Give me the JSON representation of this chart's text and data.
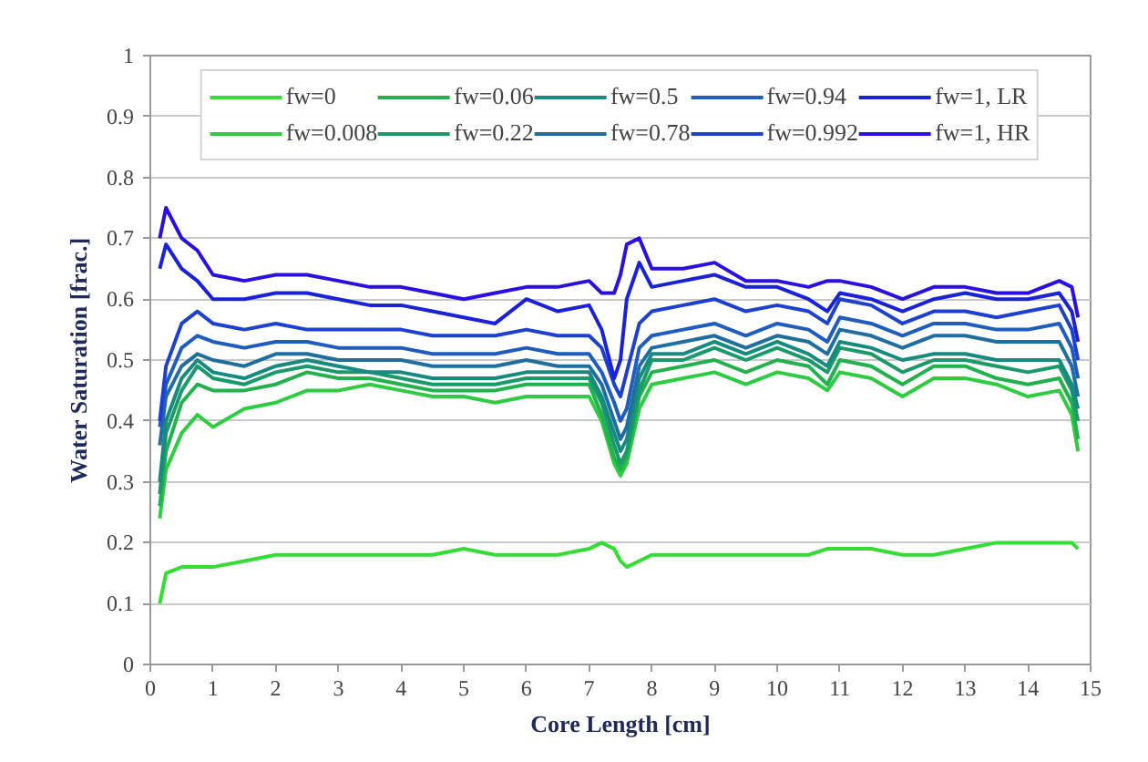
{
  "chart_data": {
    "type": "line",
    "xlabel": "Core Length [cm]",
    "ylabel": "Water Saturation [frac.]",
    "xlim": [
      0,
      15
    ],
    "xticks": [
      0,
      1,
      2,
      3,
      4,
      5,
      6,
      7,
      8,
      9,
      10,
      11,
      12,
      13,
      14,
      15
    ],
    "ylim": [
      0,
      1
    ],
    "yticks": [
      0,
      0.1,
      0.2,
      0.3,
      0.4,
      0.5,
      0.6,
      0.7,
      0.8,
      0.9,
      1
    ],
    "grid": "y",
    "legend": "top",
    "marker": "none",
    "line_style": "solid",
    "x": [
      0.15,
      0.25,
      0.5,
      0.75,
      1,
      1.5,
      2,
      2.5,
      3,
      3.5,
      4,
      4.5,
      5,
      5.5,
      6,
      6.5,
      7,
      7.2,
      7.4,
      7.5,
      7.6,
      7.8,
      8,
      8.5,
      9,
      9.5,
      10,
      10.5,
      10.8,
      11,
      11.5,
      12,
      12.5,
      13,
      13.5,
      14,
      14.5,
      14.7,
      14.8
    ],
    "series": [
      {
        "name": "fw=0",
        "color": "#33dd33",
        "values": [
          0.1,
          0.15,
          0.16,
          0.16,
          0.16,
          0.17,
          0.18,
          0.18,
          0.18,
          0.18,
          0.18,
          0.18,
          0.19,
          0.18,
          0.18,
          0.18,
          0.19,
          0.2,
          0.19,
          0.17,
          0.16,
          0.17,
          0.18,
          0.18,
          0.18,
          0.18,
          0.18,
          0.18,
          0.19,
          0.19,
          0.19,
          0.18,
          0.18,
          0.19,
          0.2,
          0.2,
          0.2,
          0.2,
          0.19
        ]
      },
      {
        "name": "fw=0.008",
        "color": "#2ecc40",
        "values": [
          0.24,
          0.32,
          0.38,
          0.41,
          0.39,
          0.42,
          0.43,
          0.45,
          0.45,
          0.46,
          0.45,
          0.44,
          0.44,
          0.43,
          0.44,
          0.44,
          0.44,
          0.4,
          0.33,
          0.31,
          0.33,
          0.42,
          0.46,
          0.47,
          0.48,
          0.46,
          0.48,
          0.47,
          0.45,
          0.48,
          0.47,
          0.44,
          0.47,
          0.47,
          0.46,
          0.44,
          0.45,
          0.41,
          0.35
        ]
      },
      {
        "name": "fw=0.06",
        "color": "#22b14c",
        "values": [
          0.26,
          0.35,
          0.43,
          0.46,
          0.45,
          0.45,
          0.46,
          0.48,
          0.47,
          0.47,
          0.46,
          0.45,
          0.45,
          0.45,
          0.46,
          0.46,
          0.46,
          0.41,
          0.34,
          0.32,
          0.34,
          0.44,
          0.48,
          0.49,
          0.5,
          0.48,
          0.5,
          0.49,
          0.46,
          0.5,
          0.49,
          0.46,
          0.49,
          0.49,
          0.47,
          0.46,
          0.47,
          0.43,
          0.37
        ]
      },
      {
        "name": "fw=0.22",
        "color": "#1a9a6a",
        "values": [
          0.28,
          0.38,
          0.45,
          0.49,
          0.47,
          0.46,
          0.48,
          0.49,
          0.48,
          0.48,
          0.47,
          0.46,
          0.46,
          0.46,
          0.47,
          0.47,
          0.47,
          0.43,
          0.36,
          0.33,
          0.35,
          0.45,
          0.5,
          0.5,
          0.52,
          0.5,
          0.52,
          0.5,
          0.48,
          0.52,
          0.51,
          0.48,
          0.5,
          0.5,
          0.49,
          0.48,
          0.49,
          0.45,
          0.4
        ]
      },
      {
        "name": "fw=0.5",
        "color": "#178a80",
        "values": [
          0.3,
          0.4,
          0.47,
          0.5,
          0.48,
          0.47,
          0.49,
          0.5,
          0.49,
          0.48,
          0.48,
          0.47,
          0.47,
          0.47,
          0.48,
          0.48,
          0.48,
          0.44,
          0.38,
          0.35,
          0.37,
          0.47,
          0.51,
          0.51,
          0.53,
          0.51,
          0.53,
          0.51,
          0.49,
          0.53,
          0.52,
          0.5,
          0.51,
          0.51,
          0.5,
          0.5,
          0.5,
          0.46,
          0.42
        ]
      },
      {
        "name": "fw=0.78",
        "color": "#1e6fa0",
        "values": [
          0.36,
          0.44,
          0.49,
          0.51,
          0.5,
          0.49,
          0.51,
          0.51,
          0.5,
          0.5,
          0.5,
          0.49,
          0.49,
          0.49,
          0.5,
          0.49,
          0.49,
          0.46,
          0.4,
          0.37,
          0.39,
          0.49,
          0.52,
          0.53,
          0.54,
          0.52,
          0.54,
          0.53,
          0.51,
          0.55,
          0.54,
          0.52,
          0.54,
          0.54,
          0.53,
          0.53,
          0.53,
          0.49,
          0.44
        ]
      },
      {
        "name": "fw=0.94",
        "color": "#1f5cbf",
        "values": [
          0.39,
          0.46,
          0.52,
          0.54,
          0.53,
          0.52,
          0.53,
          0.53,
          0.52,
          0.52,
          0.52,
          0.51,
          0.51,
          0.51,
          0.52,
          0.51,
          0.51,
          0.48,
          0.43,
          0.4,
          0.42,
          0.52,
          0.54,
          0.55,
          0.56,
          0.54,
          0.56,
          0.55,
          0.53,
          0.57,
          0.56,
          0.54,
          0.56,
          0.56,
          0.55,
          0.55,
          0.56,
          0.52,
          0.47
        ]
      },
      {
        "name": "fw=0.992",
        "color": "#1e40d0",
        "values": [
          0.4,
          0.49,
          0.56,
          0.58,
          0.56,
          0.55,
          0.56,
          0.55,
          0.55,
          0.55,
          0.55,
          0.54,
          0.54,
          0.54,
          0.55,
          0.54,
          0.54,
          0.52,
          0.46,
          0.44,
          0.48,
          0.56,
          0.58,
          0.59,
          0.6,
          0.58,
          0.59,
          0.58,
          0.56,
          0.6,
          0.59,
          0.56,
          0.58,
          0.58,
          0.57,
          0.58,
          0.59,
          0.55,
          0.5
        ]
      },
      {
        "name": "fw=1, LR",
        "color": "#1a22d8",
        "values": [
          0.65,
          0.69,
          0.65,
          0.63,
          0.6,
          0.6,
          0.61,
          0.61,
          0.6,
          0.59,
          0.59,
          0.58,
          0.57,
          0.56,
          0.6,
          0.58,
          0.59,
          0.55,
          0.47,
          0.5,
          0.6,
          0.66,
          0.62,
          0.63,
          0.64,
          0.62,
          0.62,
          0.6,
          0.58,
          0.61,
          0.6,
          0.58,
          0.6,
          0.61,
          0.6,
          0.6,
          0.61,
          0.58,
          0.53
        ]
      },
      {
        "name": "fw=1, HR",
        "color": "#2a10e0",
        "values": [
          0.7,
          0.75,
          0.7,
          0.68,
          0.64,
          0.63,
          0.64,
          0.64,
          0.63,
          0.62,
          0.62,
          0.61,
          0.6,
          0.61,
          0.62,
          0.62,
          0.63,
          0.61,
          0.61,
          0.64,
          0.69,
          0.7,
          0.65,
          0.65,
          0.66,
          0.63,
          0.63,
          0.62,
          0.63,
          0.63,
          0.62,
          0.6,
          0.62,
          0.62,
          0.61,
          0.61,
          0.63,
          0.62,
          0.57
        ]
      }
    ]
  }
}
